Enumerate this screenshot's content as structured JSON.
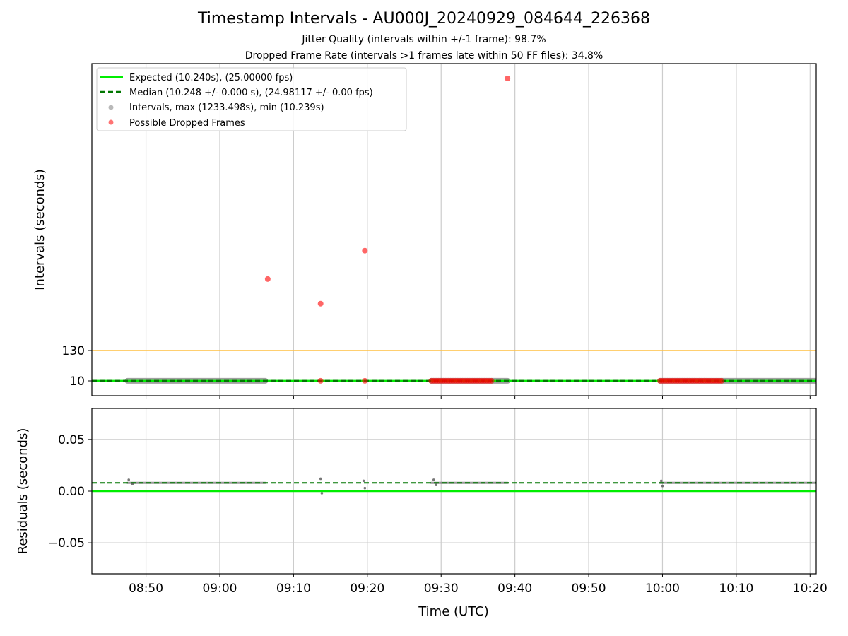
{
  "figure": {
    "title": "Timestamp Intervals - AU000J_20240929_084644_226368",
    "subtitle_jitter": "Jitter Quality (intervals within +/-1 frame): 98.7%",
    "subtitle_dropped": "Dropped Frame Rate (intervals >1 frames late within 50 FF files): 34.8%"
  },
  "colors": {
    "expected": "#00ee00",
    "median": "#007700",
    "intervals": "#808080",
    "dropped": "#ff0000",
    "threshold": "#ffbf40",
    "grid": "#cccccc"
  },
  "chart_data": [
    {
      "type": "scatter",
      "ylabel": "Intervals (seconds)",
      "y_ticks": [
        10,
        130
      ],
      "y_tick_labels": [
        "10",
        "130"
      ],
      "ylim": [
        -50,
        1300
      ],
      "xlim": [
        "08:42:40",
        "10:20:50"
      ],
      "x_ticks": [
        "08:50",
        "09:00",
        "09:10",
        "09:20",
        "09:30",
        "09:40",
        "09:50",
        "10:00",
        "10:10",
        "10:20"
      ],
      "grid": "vertical",
      "legend_position": "top-left",
      "legend": [
        "Expected (10.240s), (25.00000 fps)",
        "Median (10.248 +/- 0.000 s), (24.98117 +/- 0.00 fps)",
        "Intervals, max (1233.498s), min (10.239s)",
        "Possible Dropped Frames"
      ],
      "expected_value": 10.24,
      "median_value": 10.248,
      "threshold_value": 130,
      "interval_segments": [
        {
          "start": "08:47:30",
          "end": "09:06:10",
          "value": 10.25
        },
        {
          "start": "09:28:40",
          "end": "09:39:00",
          "value": 10.25
        },
        {
          "start": "09:59:40",
          "end": "10:20:50",
          "value": 10.25
        }
      ],
      "dropped_points": [
        {
          "x": "09:06:30",
          "y": 420
        },
        {
          "x": "09:13:40",
          "y": 320
        },
        {
          "x": "09:13:40",
          "y": 10.3
        },
        {
          "x": "09:19:40",
          "y": 535
        },
        {
          "x": "09:19:40",
          "y": 10.3
        },
        {
          "x": "09:39:00",
          "y": 1233.5
        }
      ],
      "dropped_clusters": [
        {
          "start": "09:28:40",
          "end": "09:36:50",
          "count": 26,
          "value": 10.3
        },
        {
          "start": "09:59:40",
          "end": "10:08:00",
          "count": 26,
          "value": 10.3
        }
      ]
    },
    {
      "type": "scatter",
      "xlabel": "Time (UTC)",
      "ylabel": "Residuals (seconds)",
      "ylim": [
        -0.08,
        0.08
      ],
      "y_ticks": [
        -0.05,
        0.0,
        0.05
      ],
      "y_tick_labels": [
        "−0.05",
        "0.00",
        "0.05"
      ],
      "x_ticks": [
        "08:50",
        "09:00",
        "09:10",
        "09:20",
        "09:30",
        "09:40",
        "09:50",
        "10:00",
        "10:10",
        "10:20"
      ],
      "grid": "both",
      "expected_residual": 0.0,
      "median_residual": 0.008,
      "residual_segments": [
        {
          "start": "08:47:30",
          "end": "09:06:10",
          "value": 0.008
        },
        {
          "start": "09:28:40",
          "end": "09:39:00",
          "value": 0.008
        },
        {
          "start": "09:59:40",
          "end": "10:20:50",
          "value": 0.008
        }
      ],
      "residual_points": [
        {
          "x": "08:47:40",
          "y": 0.011
        },
        {
          "x": "08:48:10",
          "y": 0.007
        },
        {
          "x": "09:13:40",
          "y": 0.012
        },
        {
          "x": "09:13:50",
          "y": -0.002
        },
        {
          "x": "09:19:30",
          "y": 0.01
        },
        {
          "x": "09:19:40",
          "y": 0.003
        },
        {
          "x": "09:29:00",
          "y": 0.011
        },
        {
          "x": "09:29:20",
          "y": 0.006
        },
        {
          "x": "09:59:50",
          "y": 0.01
        },
        {
          "x": "10:00:00",
          "y": 0.005
        }
      ]
    }
  ]
}
